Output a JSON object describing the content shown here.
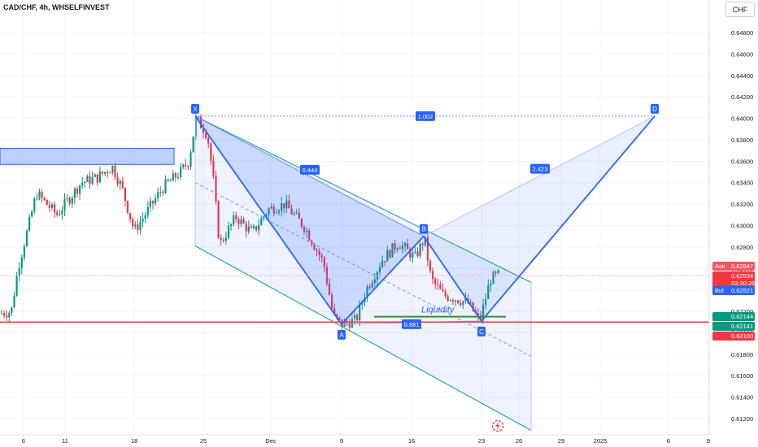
{
  "header": {
    "title": "CAD/CHF, 4h, WHSELFINVEST",
    "currency_button": "CHF"
  },
  "colors": {
    "bull": "#089981",
    "bear": "#f23645",
    "pattern_line": "#2962ff",
    "pattern_fill": "#2962ff",
    "support_line": "#f23645",
    "channel_line": "#089981",
    "liquidity_line": "#388e3c",
    "ask_tag": "#f7525f",
    "bid_tag": "#2962ff"
  },
  "chart_data": {
    "type": "candlestick",
    "title": "CAD/CHF, 4h, WHSELFINVEST",
    "ylim": [
      0.611,
      0.6503
    ],
    "y_ticks": [
      "0.64800",
      "0.64600",
      "0.64400",
      "0.64200",
      "0.64000",
      "0.63800",
      "0.63600",
      "0.63400",
      "0.63200",
      "0.63000",
      "0.62800",
      "0.62600",
      "0.62400",
      "0.62200",
      "0.62000",
      "0.61800",
      "0.61600",
      "0.61400",
      "0.61200"
    ],
    "x_ticks": [
      "6",
      "11",
      "18",
      "25",
      "Dec",
      "9",
      "16",
      "23",
      "26",
      "29",
      "2025",
      "6",
      "9"
    ],
    "price_tags": {
      "ask": {
        "label": "Ask",
        "value": "0.62547"
      },
      "last": {
        "value": "0.62534",
        "countdown": "03:30:26"
      },
      "bid": {
        "label": "Bid",
        "value": "0.62521"
      },
      "level1": {
        "value": "0.62144"
      },
      "level2": {
        "value": "0.62141"
      },
      "level3": {
        "value": "0.62100"
      }
    },
    "pattern": {
      "points": [
        {
          "label": "X",
          "price": 0.6402
        },
        {
          "label": "A",
          "price": 0.6208
        },
        {
          "label": "B",
          "price": 0.629
        },
        {
          "label": "C",
          "price": 0.6211
        },
        {
          "label": "D",
          "price": 0.6402
        }
      ],
      "ratios": [
        "1.002",
        "0.444",
        "2.423",
        "0.881"
      ]
    },
    "support_level": 0.621,
    "liquidity": {
      "label": "Liquidity",
      "price": 0.6215
    },
    "candles_bull_share": 0.5
  }
}
